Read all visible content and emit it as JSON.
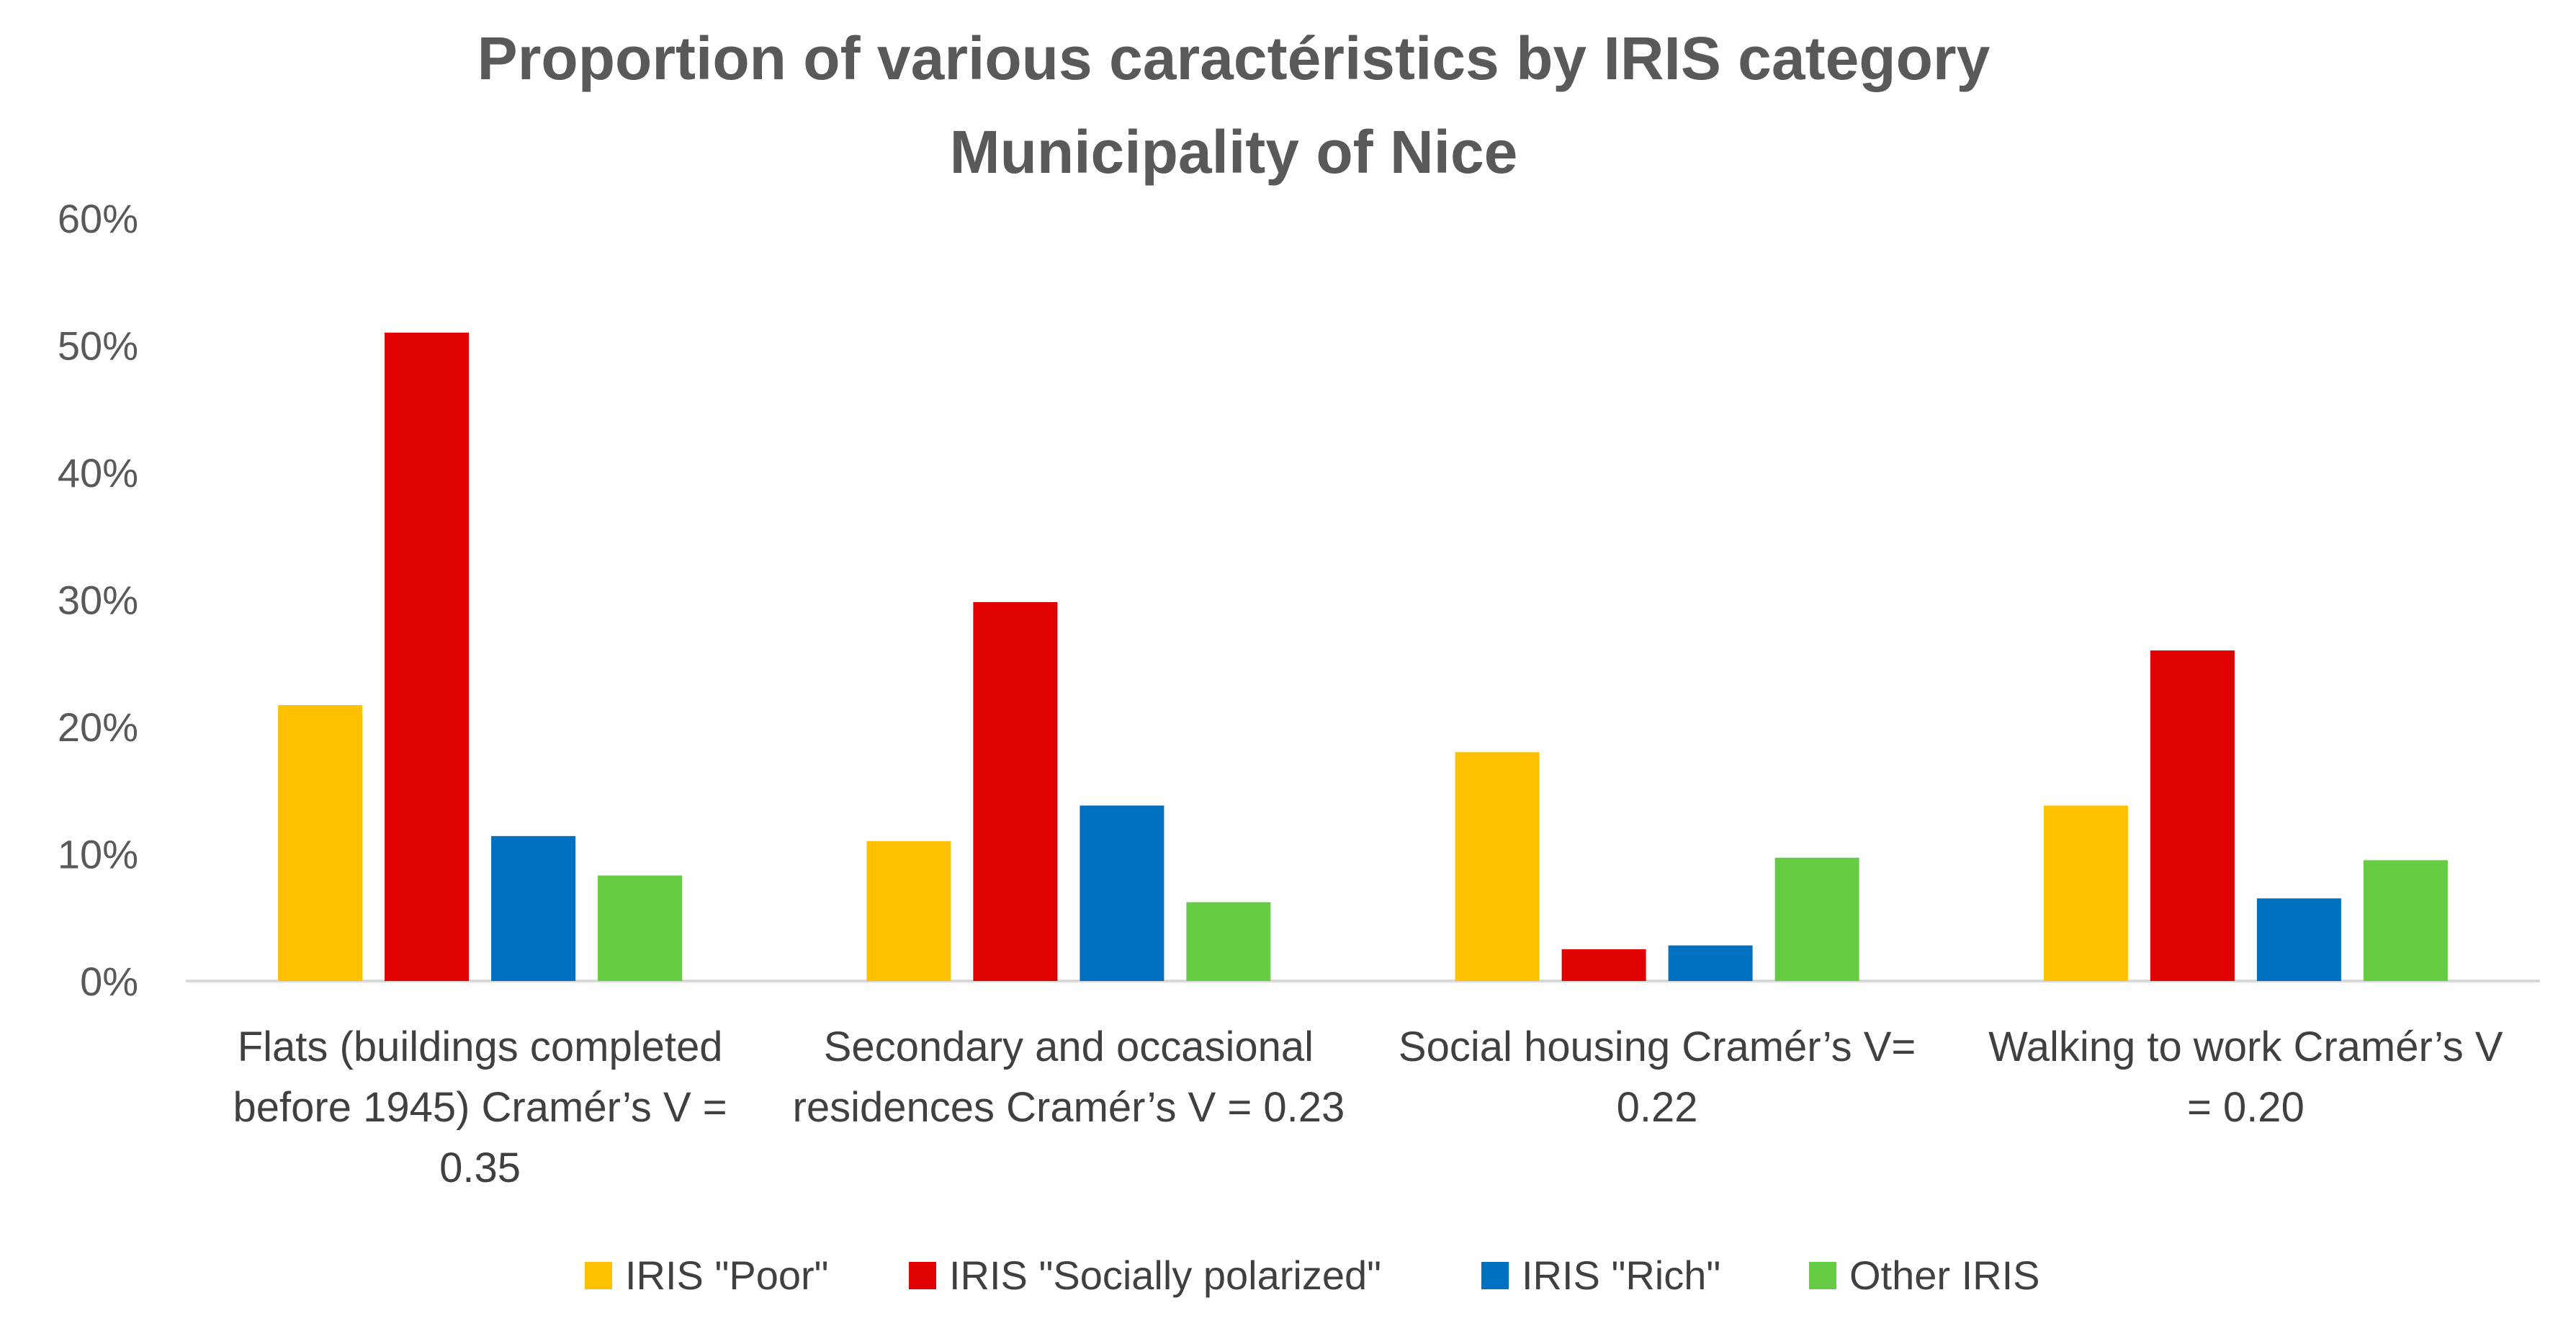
{
  "chart_data": {
    "type": "bar",
    "title": "Proportion of various caractéristics by IRIS category",
    "subtitle": "Municipality of Nice",
    "xlabel": "",
    "ylabel": "",
    "ylim": [
      0,
      0.6
    ],
    "yticks": [
      0,
      0.1,
      0.2,
      0.3,
      0.4,
      0.5,
      0.6
    ],
    "ytick_labels": [
      "0%",
      "10%",
      "20%",
      "30%",
      "40%",
      "50%",
      "60%"
    ],
    "legend_position": "bottom",
    "grid": false,
    "categories": [
      [
        "Flats (buildings completed",
        "before 1945) Cramér’s V =",
        "0.35"
      ],
      [
        "Secondary and occasional",
        "residences  Cramér’s V = 0.23"
      ],
      [
        "Social housing Cramér’s V=",
        "0.22"
      ],
      [
        "Walking to work   Cramér’s V",
        "= 0.20"
      ]
    ],
    "series": [
      {
        "name": "IRIS \"Poor\"",
        "color": "#ffc000",
        "values": [
          0.217,
          0.11,
          0.18,
          0.138
        ]
      },
      {
        "name": "IRIS \"Socially polarized\"",
        "color": "#e00000",
        "values": [
          0.51,
          0.298,
          0.025,
          0.26
        ]
      },
      {
        "name": "IRIS \"Rich\"",
        "color": "#0070c0",
        "values": [
          0.114,
          0.138,
          0.028,
          0.065
        ]
      },
      {
        "name": "Other IRIS",
        "color": "#66cc44",
        "values": [
          0.083,
          0.062,
          0.097,
          0.095
        ]
      }
    ]
  }
}
